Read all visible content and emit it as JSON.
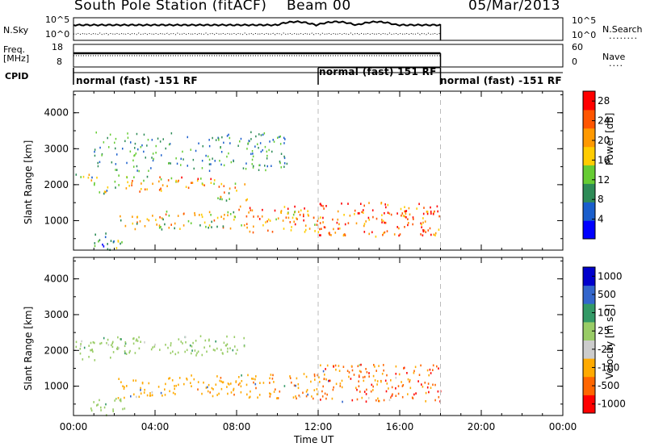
{
  "header": {
    "station": "South Pole Station (fitACF)",
    "beam": "Beam 00",
    "date": "05/Mar/2013"
  },
  "status_panels": {
    "nsky_label": "N.Sky",
    "nsearch_label": "N.Search",
    "freq_label_1": "Freq.",
    "freq_label_2": "[MHz]",
    "nave_label": "Nave",
    "cpid_label": "CPID",
    "noise_left_ticks": [
      "10^5",
      "10^0"
    ],
    "noise_right_ticks": [
      "10^5",
      "10^0"
    ],
    "freq_ticks": [
      "18",
      "8"
    ],
    "nave_ticks": [
      "60",
      "0"
    ]
  },
  "cpid_segments": [
    {
      "label": "normal (fast) -151 RF",
      "start_hr": 0,
      "end_hr": 12
    },
    {
      "label": "normal (fast) 151 RF",
      "start_hr": 12,
      "end_hr": 18
    },
    {
      "label": "normal (fast) -151 RF",
      "start_hr": 18,
      "end_hr": 24
    }
  ],
  "colors": {
    "power": [
      "#0000ff",
      "#1a5ecc",
      "#2e8b57",
      "#66cc33",
      "#ffcc00",
      "#ff9900",
      "#ff5500",
      "#ff0000"
    ],
    "velocity": [
      "#ff0000",
      "#ff6600",
      "#ffaa00",
      "#cccccc",
      "#99cc66",
      "#339966",
      "#3366cc",
      "#0000cc"
    ]
  },
  "chart_data": [
    {
      "type": "heatmap",
      "panel": "power",
      "ylabel": "Slant Range [km]",
      "yticks": [
        1000,
        2000,
        3000,
        4000
      ],
      "ylim": [
        180,
        4600
      ],
      "xlim_hours": [
        0,
        24
      ],
      "colorbar_label": "Power [dB]",
      "colorbar_ticks": [
        "4",
        "8",
        "12",
        "16",
        "20",
        "24",
        "28"
      ],
      "colorbar_range": [
        0,
        30
      ],
      "scatter_bands": [
        {
          "t0": 0.1,
          "t1": 1.2,
          "r0": 1950,
          "r1": 2300,
          "value": 14
        },
        {
          "t0": 1.2,
          "t1": 2.0,
          "r0": 1700,
          "r1": 2000,
          "value": 12
        },
        {
          "t0": 2.0,
          "t1": 4.5,
          "r0": 1800,
          "r1": 2250,
          "value": 18
        },
        {
          "t0": 4.5,
          "t1": 7.0,
          "r0": 1850,
          "r1": 2200,
          "value": 20
        },
        {
          "t0": 7.0,
          "t1": 8.5,
          "r0": 1550,
          "r1": 2050,
          "value": 18
        },
        {
          "t0": 2.0,
          "t1": 4.5,
          "r0": 750,
          "r1": 1150,
          "value": 16
        },
        {
          "t0": 4.5,
          "t1": 8.0,
          "r0": 750,
          "r1": 1250,
          "value": 17
        },
        {
          "t0": 8.0,
          "t1": 12.0,
          "r0": 650,
          "r1": 1400,
          "value": 22
        },
        {
          "t0": 12.0,
          "t1": 18.0,
          "r0": 550,
          "r1": 1500,
          "value": 24
        },
        {
          "t0": 0.8,
          "t1": 2.5,
          "r0": 180,
          "r1": 650,
          "value": 10
        }
      ],
      "sparse_region": {
        "t0": 1.0,
        "t1": 10.5,
        "r0": 2400,
        "r1": 3500
      }
    },
    {
      "type": "heatmap",
      "panel": "velocity",
      "ylabel": "Slant Range [km]",
      "yticks": [
        1000,
        2000,
        3000,
        4000
      ],
      "ylim": [
        180,
        4600
      ],
      "xlim_hours": [
        0,
        24
      ],
      "xticks": [
        "00:00",
        "04:00",
        "08:00",
        "12:00",
        "16:00",
        "20:00",
        "00:00"
      ],
      "xlabel": "Time UT",
      "colorbar_label": "Velocity [m s⁻¹]",
      "colorbar_ticks": [
        "-1000",
        "-500",
        "-100",
        "-25",
        "25",
        "100",
        "500",
        "1000"
      ],
      "scatter_bands": [
        {
          "t0": 0.1,
          "t1": 2.0,
          "r0": 1700,
          "r1": 2350,
          "value": 0
        },
        {
          "t0": 2.0,
          "t1": 8.5,
          "r0": 1850,
          "r1": 2400,
          "value": 0
        },
        {
          "t0": 2.0,
          "t1": 4.5,
          "r0": 650,
          "r1": 1200,
          "value": -200
        },
        {
          "t0": 4.5,
          "t1": 8.5,
          "r0": 700,
          "r1": 1300,
          "value": -300
        },
        {
          "t0": 8.5,
          "t1": 12.0,
          "r0": 650,
          "r1": 1350,
          "value": -400
        },
        {
          "t0": 12.0,
          "t1": 18.0,
          "r0": 550,
          "r1": 1600,
          "value": -700
        },
        {
          "t0": 0.8,
          "t1": 2.5,
          "r0": 180,
          "r1": 650,
          "value": 0
        }
      ]
    }
  ]
}
